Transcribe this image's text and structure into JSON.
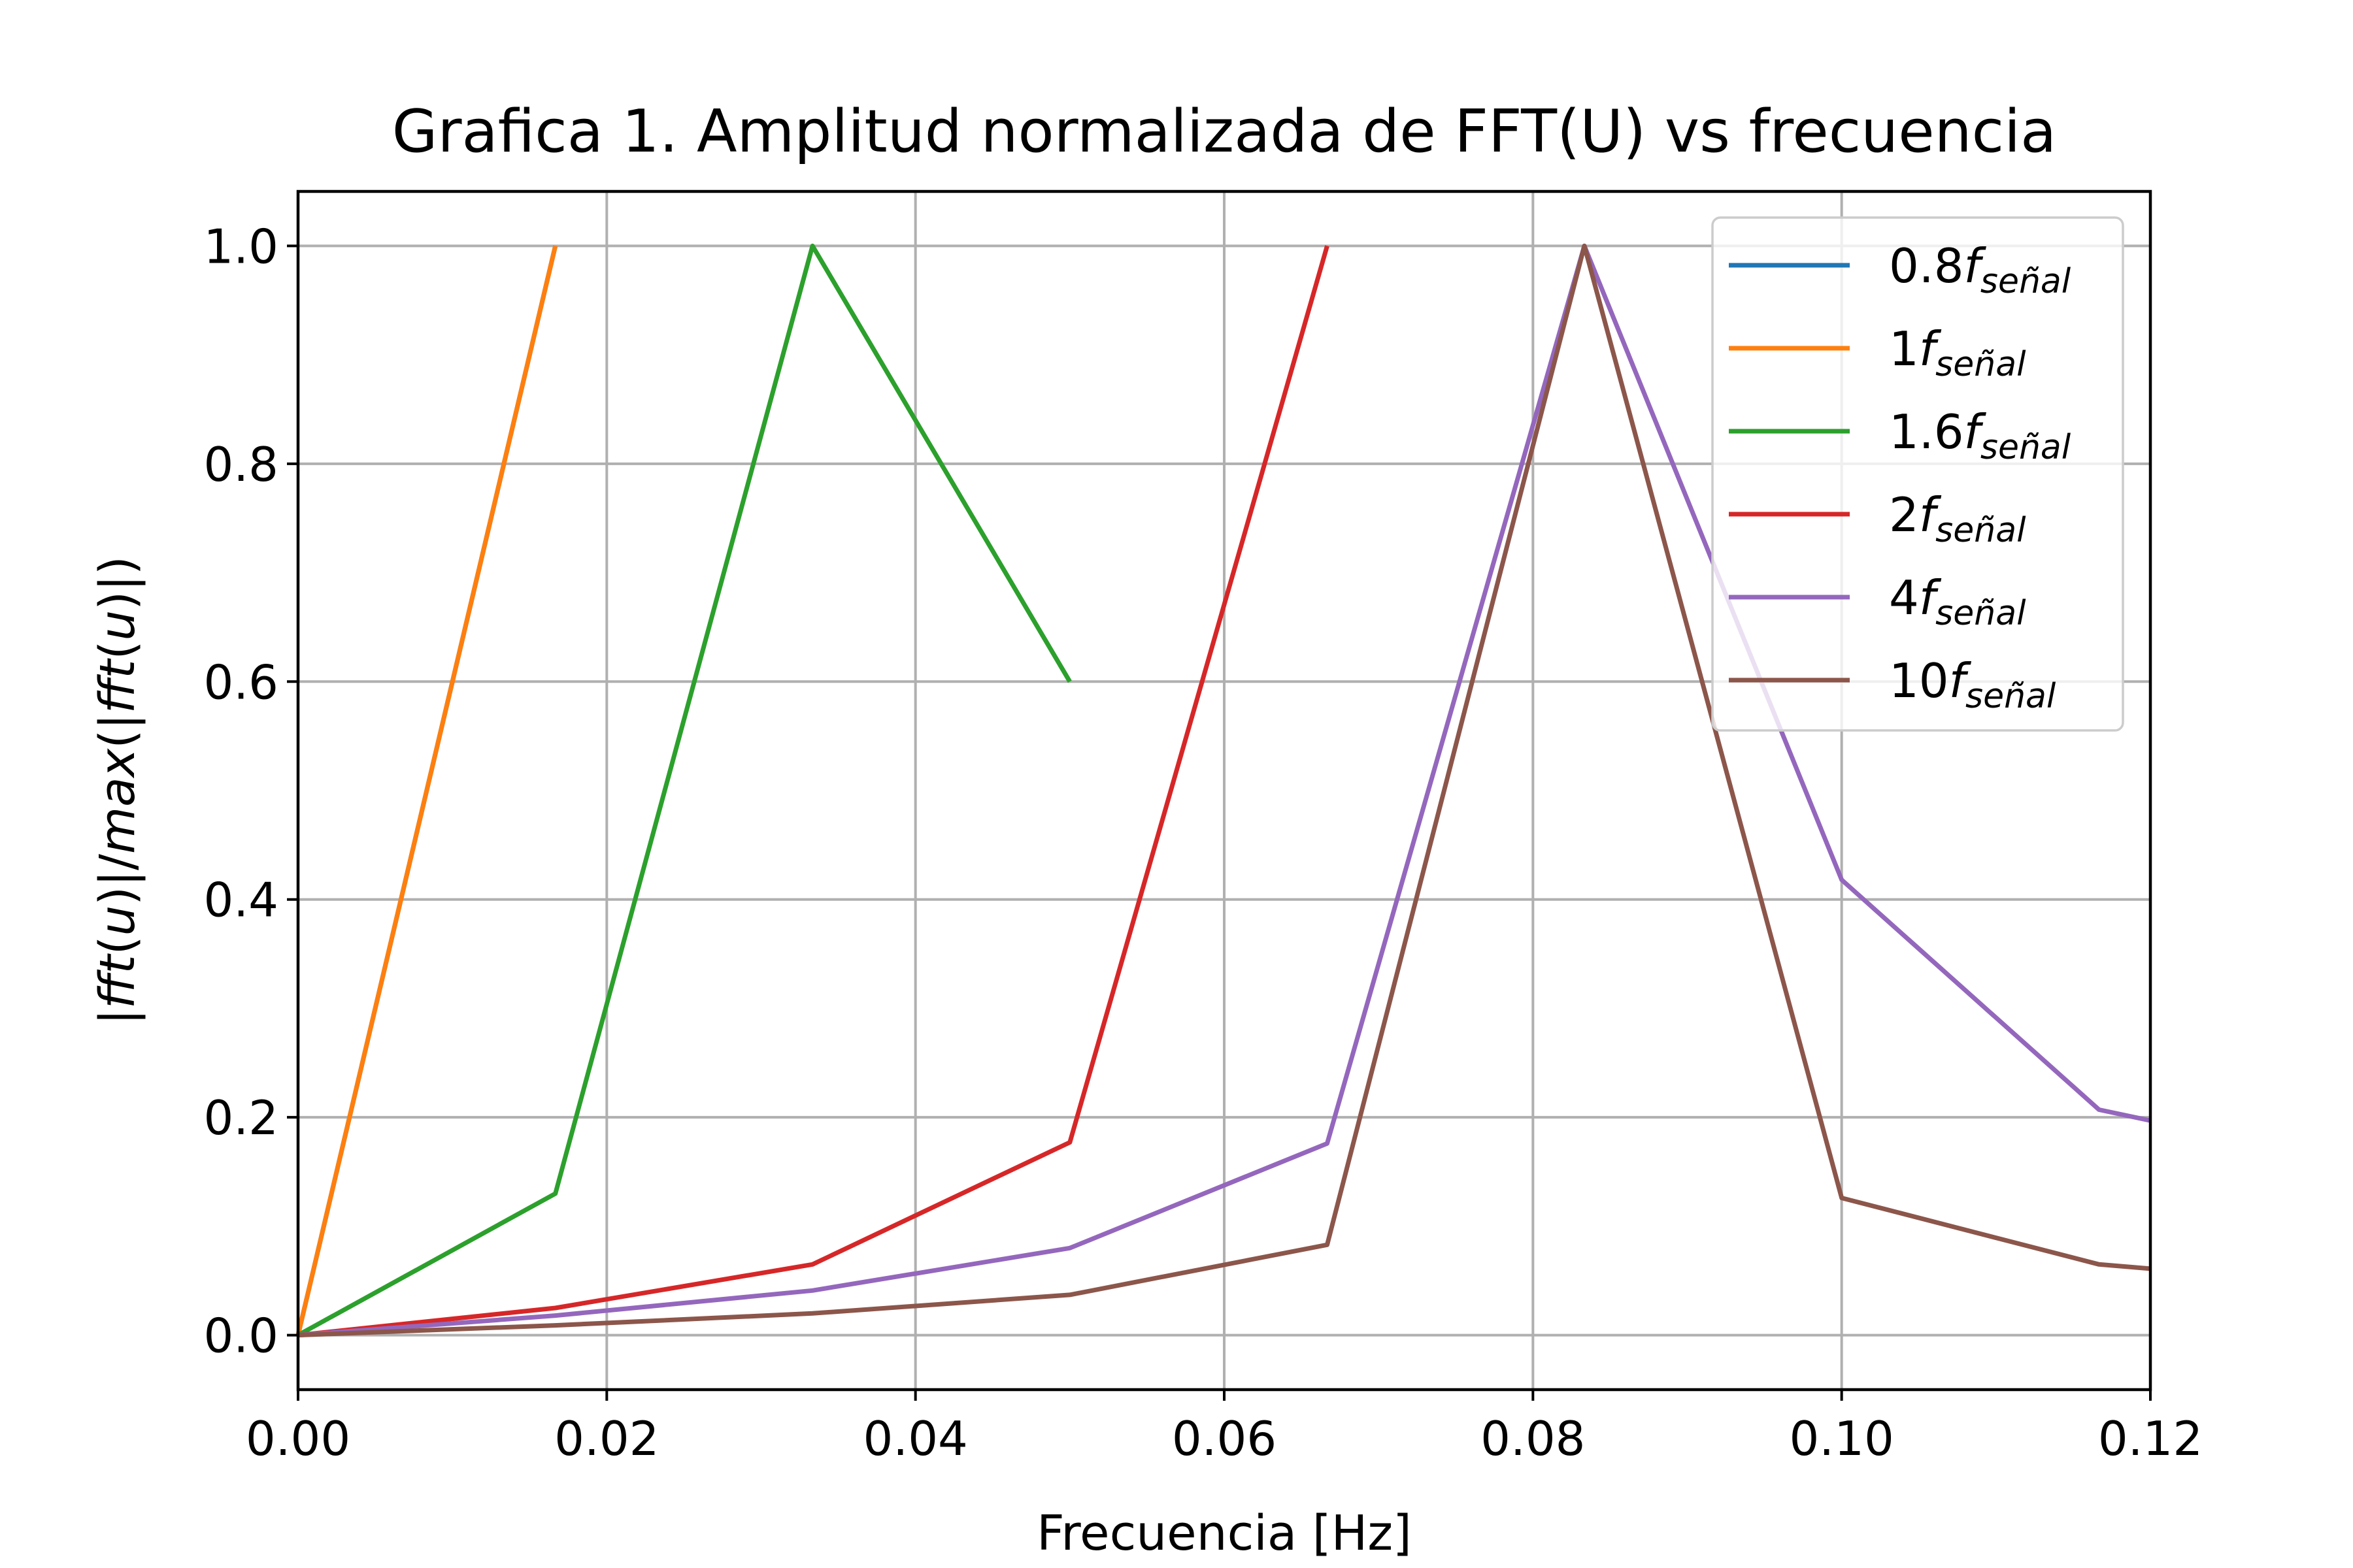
{
  "chart_data": {
    "type": "line",
    "title": "Grafica 1. Amplitud normalizada de FFT(U) vs frecuencia",
    "xlabel": "Frecuencia [Hz]",
    "ylabel": {
      "parts": [
        "|",
        "fft",
        "(",
        "u",
        ")|/",
        "max",
        "(|",
        "fft",
        "(",
        "u",
        ")|)"
      ],
      "italic": [
        false,
        true,
        false,
        true,
        false,
        true,
        false,
        true,
        false,
        true,
        false
      ]
    },
    "xlim": [
      0.0,
      0.12
    ],
    "ylim": [
      -0.05,
      1.05
    ],
    "xticks": [
      0.0,
      0.02,
      0.04,
      0.06,
      0.08,
      0.1,
      0.12
    ],
    "xtick_labels": [
      "0.00",
      "0.02",
      "0.04",
      "0.06",
      "0.08",
      "0.10",
      "0.12"
    ],
    "yticks": [
      0.0,
      0.2,
      0.4,
      0.6,
      0.8,
      1.0
    ],
    "ytick_labels": [
      "0.0",
      "0.2",
      "0.4",
      "0.6",
      "0.8",
      "1.0"
    ],
    "grid": true,
    "legend_position": "upper right",
    "series": [
      {
        "name": "0.8",
        "legend_sub": "señal",
        "color": "#1f77b4",
        "x": [
          0.0,
          0.01667
        ],
        "y": [
          0.0,
          1.0
        ]
      },
      {
        "name": "1",
        "legend_sub": "señal",
        "color": "#ff7f0e",
        "x": [
          0.0,
          0.01667
        ],
        "y": [
          0.0,
          1.0
        ]
      },
      {
        "name": "1.6",
        "legend_sub": "señal",
        "color": "#2ca02c",
        "x": [
          0.0,
          0.01667,
          0.03333,
          0.05
        ],
        "y": [
          0.0,
          0.13,
          1.0,
          0.6
        ]
      },
      {
        "name": "2",
        "legend_sub": "señal",
        "color": "#d62728",
        "x": [
          0.0,
          0.01667,
          0.03333,
          0.05,
          0.06667
        ],
        "y": [
          0.0,
          0.025,
          0.065,
          0.177,
          1.0
        ]
      },
      {
        "name": "4",
        "legend_sub": "señal",
        "color": "#9467bd",
        "x": [
          0.0,
          0.01667,
          0.03333,
          0.05,
          0.06667,
          0.08333,
          0.1,
          0.11667,
          0.12
        ],
        "y": [
          0.0,
          0.018,
          0.041,
          0.08,
          0.176,
          1.0,
          0.418,
          0.207,
          0.197
        ]
      },
      {
        "name": "10",
        "legend_sub": "señal",
        "color": "#8c564b",
        "x": [
          0.0,
          0.01667,
          0.03333,
          0.05,
          0.06667,
          0.08333,
          0.1,
          0.11667,
          0.12
        ],
        "y": [
          0.0,
          0.009,
          0.02,
          0.037,
          0.083,
          1.0,
          0.126,
          0.065,
          0.061
        ]
      }
    ]
  }
}
